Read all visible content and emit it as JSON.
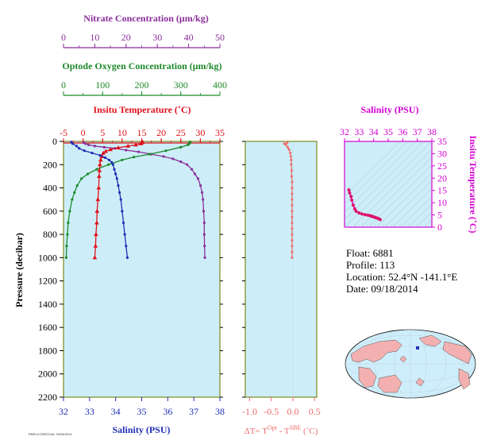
{
  "colors": {
    "nitrate": "#8b2f9a",
    "oxygen": "#1c8a2a",
    "temperature": "#e0101a",
    "salinity": "#1f2fb5",
    "delta_t": "#f06a6a",
    "ts_axis": "#d400d4",
    "panel_bg": "#cdeef8",
    "frame_olive": "#7a8a20",
    "land": "#f4b0b0",
    "ocean_globe": "#cfeefb"
  },
  "info": {
    "float": "Float:  6881",
    "profile": "Profile:  113",
    "location": "Location:  52.4°N  -141.1°E",
    "date": "Date:  09/18/2014"
  },
  "stamp": "PMEL/CSIRO/UW, 09/28/2014",
  "chart_data": [
    {
      "type": "line",
      "panel": "main-profile",
      "ylabel": "Pressure (decibar)",
      "y_ticks": [
        "0",
        "200",
        "400",
        "600",
        "800",
        "1000",
        "1200",
        "1400",
        "1600",
        "1800",
        "2000",
        "2200"
      ],
      "ylim": [
        2200,
        0
      ],
      "axes": [
        {
          "label": "Nitrate Concentration (μm/kg)",
          "ticks": [
            "0",
            "10",
            "20",
            "30",
            "40",
            "50"
          ],
          "range": [
            0,
            50
          ]
        },
        {
          "label": "Optode Oxygen Concentration (μm/kg)",
          "ticks": [
            "0",
            "100",
            "200",
            "300",
            "400"
          ],
          "range": [
            0,
            400
          ]
        },
        {
          "label": "Insitu Temperature (˚C)",
          "ticks": [
            "-5",
            "0",
            "5",
            "10",
            "15",
            "20",
            "25",
            "30",
            "35"
          ],
          "range": [
            -5,
            35
          ]
        },
        {
          "label": "Salinity (PSU)",
          "ticks": [
            "32",
            "33",
            "34",
            "35",
            "36",
            "37",
            "38"
          ],
          "range": [
            32,
            38
          ]
        }
      ],
      "series": [
        {
          "key": "nitrate",
          "points": [
            [
              6.5,
              10
            ],
            [
              7,
              20
            ],
            [
              8,
              30
            ],
            [
              10,
              40
            ],
            [
              13,
              50
            ],
            [
              16.5,
              60
            ],
            [
              20,
              75
            ],
            [
              24,
              90
            ],
            [
              28,
              110
            ],
            [
              32,
              130
            ],
            [
              35,
              150
            ],
            [
              37.5,
              175
            ],
            [
              39.5,
              200
            ],
            [
              41,
              240
            ],
            [
              42,
              280
            ],
            [
              43,
              320
            ],
            [
              43.8,
              380
            ],
            [
              44.3,
              440
            ],
            [
              44.6,
              500
            ],
            [
              44.8,
              600
            ],
            [
              45,
              700
            ],
            [
              45,
              800
            ],
            [
              45.1,
              900
            ],
            [
              45.2,
              1000
            ]
          ]
        },
        {
          "key": "oxygen",
          "points": [
            [
              324,
              5
            ],
            [
              323,
              10
            ],
            [
              322,
              20
            ],
            [
              318,
              30
            ],
            [
              300,
              50
            ],
            [
              262,
              80
            ],
            [
              220,
              110
            ],
            [
              180,
              135
            ],
            [
              150,
              160
            ],
            [
              115,
              200
            ],
            [
              85,
              240
            ],
            [
              62,
              280
            ],
            [
              46,
              320
            ],
            [
              35,
              380
            ],
            [
              28,
              440
            ],
            [
              22,
              500
            ],
            [
              16,
              600
            ],
            [
              12,
              700
            ],
            [
              10,
              800
            ],
            [
              8,
              900
            ],
            [
              7,
              1000
            ]
          ]
        },
        {
          "key": "temperature",
          "points": [
            [
              15.2,
              5
            ],
            [
              15.1,
              10
            ],
            [
              14.8,
              20
            ],
            [
              13.5,
              30
            ],
            [
              11.5,
              40
            ],
            [
              9,
              55
            ],
            [
              7,
              70
            ],
            [
              5.8,
              85
            ],
            [
              5.2,
              100
            ],
            [
              4.8,
              130
            ],
            [
              4.5,
              160
            ],
            [
              4.3,
              200
            ],
            [
              4.2,
              250
            ],
            [
              4.1,
              300
            ],
            [
              4.0,
              400
            ],
            [
              3.8,
              500
            ],
            [
              3.6,
              600
            ],
            [
              3.5,
              700
            ],
            [
              3.3,
              800
            ],
            [
              3.2,
              900
            ],
            [
              3.0,
              1000
            ]
          ]
        },
        {
          "key": "salinity",
          "points": [
            [
              32.3,
              5
            ],
            [
              32.35,
              20
            ],
            [
              32.5,
              40
            ],
            [
              32.6,
              60
            ],
            [
              32.8,
              80
            ],
            [
              33.1,
              100
            ],
            [
              33.4,
              120
            ],
            [
              33.6,
              140
            ],
            [
              33.75,
              160
            ],
            [
              33.85,
              180
            ],
            [
              33.9,
              200
            ],
            [
              33.95,
              240
            ],
            [
              34.0,
              280
            ],
            [
              34.05,
              320
            ],
            [
              34.1,
              380
            ],
            [
              34.15,
              440
            ],
            [
              34.2,
              500
            ],
            [
              34.25,
              600
            ],
            [
              34.3,
              700
            ],
            [
              34.35,
              800
            ],
            [
              34.4,
              900
            ],
            [
              34.45,
              1000
            ]
          ]
        }
      ]
    },
    {
      "type": "line",
      "panel": "delta-t",
      "xlabel": "ΔT= T",
      "xlabel_sup1": "Opt",
      "xlabel_mid": " - T",
      "xlabel_sup2": "SBE",
      "xlabel_end": " (˚C)",
      "x_ticks": [
        "-1.0",
        "-0.5",
        "0.0",
        "0.5"
      ],
      "xlim": [
        -1.1,
        0.55
      ],
      "ylim": [
        2200,
        0
      ],
      "series": [
        {
          "key": "delta_t",
          "points": [
            [
              -0.13,
              10
            ],
            [
              -0.2,
              20
            ],
            [
              -0.16,
              30
            ],
            [
              -0.12,
              50
            ],
            [
              -0.09,
              70
            ],
            [
              -0.06,
              100
            ],
            [
              -0.05,
              130
            ],
            [
              -0.04,
              160
            ],
            [
              -0.04,
              200
            ],
            [
              -0.03,
              250
            ],
            [
              -0.03,
              300
            ],
            [
              -0.02,
              350
            ],
            [
              -0.02,
              400
            ],
            [
              -0.02,
              450
            ],
            [
              -0.02,
              500
            ],
            [
              -0.02,
              550
            ],
            [
              -0.02,
              600
            ],
            [
              -0.02,
              650
            ],
            [
              -0.02,
              700
            ],
            [
              -0.02,
              750
            ],
            [
              -0.02,
              800
            ],
            [
              -0.02,
              850
            ],
            [
              -0.02,
              900
            ],
            [
              -0.02,
              950
            ],
            [
              -0.02,
              1000
            ]
          ]
        }
      ]
    },
    {
      "type": "scatter",
      "panel": "ts-diagram",
      "title": "Salinity (PSU)",
      "ylabel": "Insitu Temperature (˚C)",
      "x_ticks": [
        "32",
        "33",
        "34",
        "35",
        "36",
        "37",
        "38"
      ],
      "y_ticks": [
        "0",
        "5",
        "10",
        "15",
        "20",
        "25",
        "30",
        "35"
      ],
      "xlim": [
        32,
        38
      ],
      "ylim": [
        0,
        35
      ],
      "series": [
        {
          "key": "ts",
          "points": [
            [
              32.3,
              15.2
            ],
            [
              32.35,
              14
            ],
            [
              32.45,
              12.5
            ],
            [
              32.5,
              11
            ],
            [
              32.6,
              9
            ],
            [
              32.7,
              7.5
            ],
            [
              32.8,
              6.5
            ],
            [
              33.0,
              5.8
            ],
            [
              33.2,
              5.4
            ],
            [
              33.4,
              5.1
            ],
            [
              33.6,
              4.9
            ],
            [
              33.75,
              4.7
            ],
            [
              33.85,
              4.5
            ],
            [
              33.95,
              4.3
            ],
            [
              34.05,
              4.1
            ],
            [
              34.15,
              3.9
            ],
            [
              34.25,
              3.7
            ],
            [
              34.35,
              3.4
            ],
            [
              34.45,
              3.1
            ]
          ]
        }
      ]
    }
  ]
}
